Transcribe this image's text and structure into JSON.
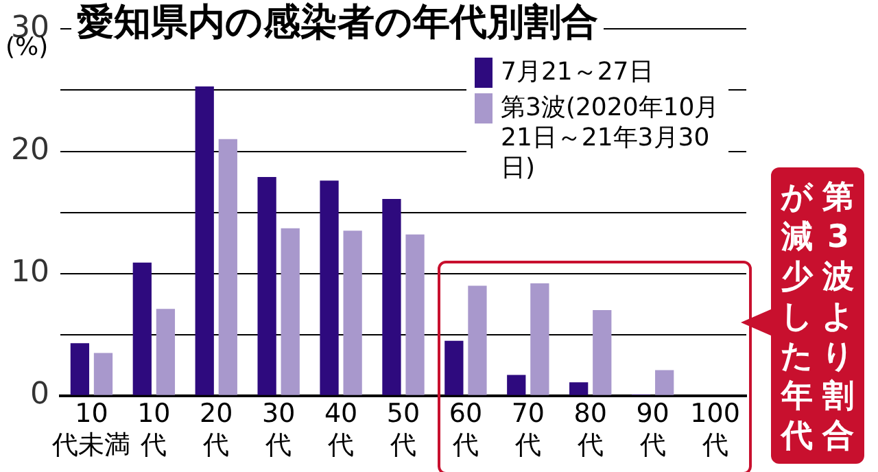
{
  "chart_data": {
    "type": "bar",
    "title": "愛知県内の感染者の年代別割合",
    "ylabel": "(%)",
    "categories": [
      "10代未満",
      "10代",
      "20代",
      "30代",
      "40代",
      "50代",
      "60代",
      "70代",
      "80代",
      "90代",
      "100代"
    ],
    "series": [
      {
        "name": "7月21～27日",
        "color": "#2e0a7e",
        "values": [
          4.3,
          10.9,
          25.3,
          17.9,
          17.6,
          16.1,
          4.5,
          1.7,
          1.1,
          0.1,
          0
        ]
      },
      {
        "name": "第3波(2020年10月21日～21年3月30日)",
        "color": "#a898cc",
        "values": [
          3.5,
          7.1,
          21.0,
          13.7,
          13.5,
          13.2,
          9.0,
          9.2,
          7.0,
          2.1,
          0
        ]
      }
    ],
    "ylim": [
      0,
      30
    ],
    "yticks": [
      0,
      {
        "value": 5,
        "label": null
      },
      10,
      {
        "value": 15,
        "label": null
      },
      20,
      {
        "value": 25,
        "label": null
      },
      30
    ],
    "grid": "y",
    "legend": "top right",
    "annotations": [
      "第3波より割合が減少した年代"
    ]
  }
}
